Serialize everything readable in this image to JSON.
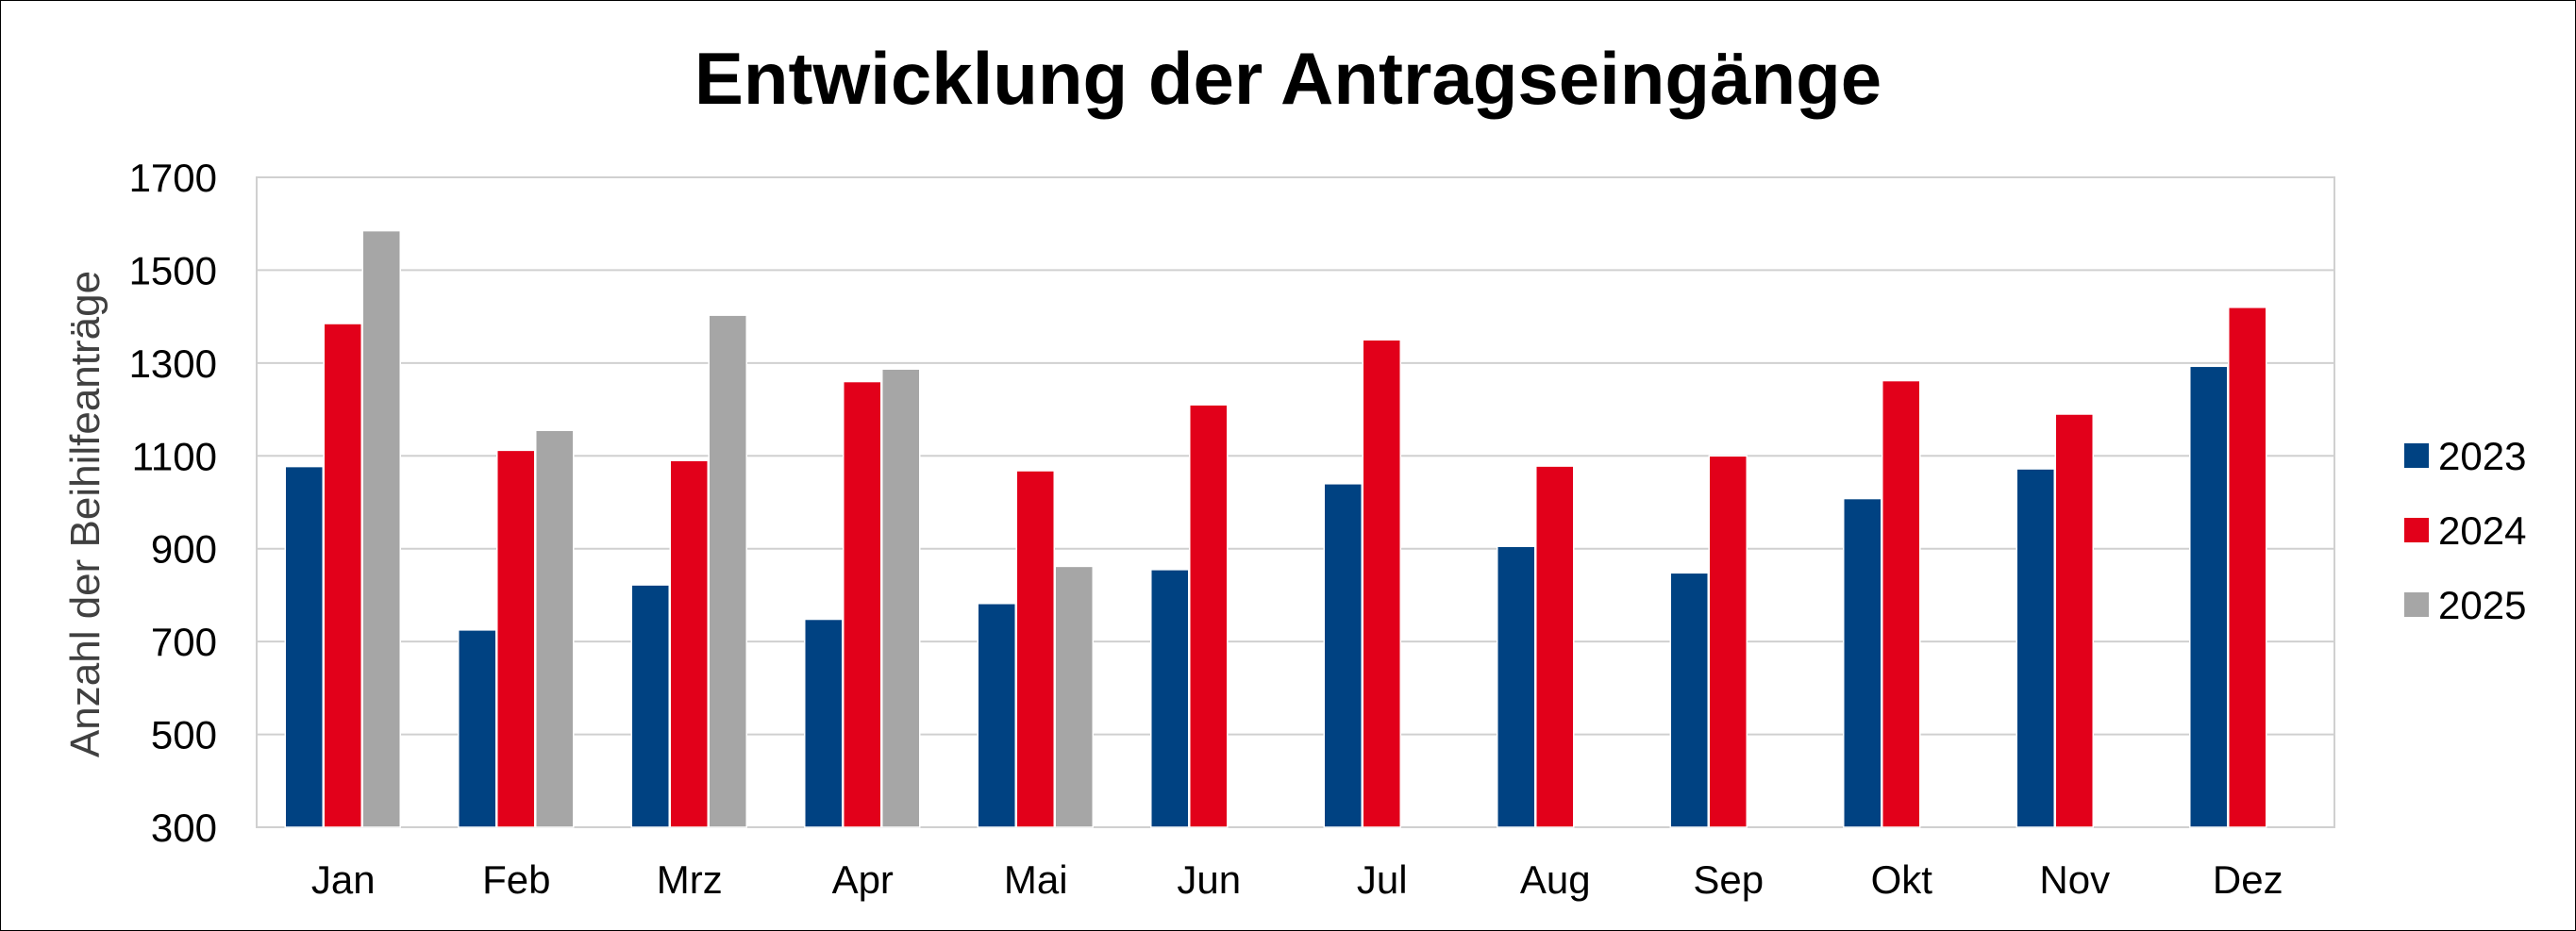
{
  "chart_data": {
    "type": "bar",
    "title": "Entwicklung der Antragseingänge",
    "ylabel": "Anzahl der Beihilfeanträge",
    "xlabel": "",
    "ylim": [
      300,
      1700
    ],
    "yticks": [
      300,
      500,
      700,
      900,
      1100,
      1300,
      1500,
      1700
    ],
    "grid": true,
    "legend_position": "right",
    "categories": [
      "Jan",
      "Feb",
      "Mrz",
      "Apr",
      "Mai",
      "Jun",
      "Jul",
      "Aug",
      "Sep",
      "Okt",
      "Nov",
      "Dez"
    ],
    "series": [
      {
        "name": "2023",
        "color": "#004282",
        "values": [
          1077,
          725,
          822,
          748,
          782,
          855,
          1040,
          905,
          848,
          1008,
          1072,
          1293
        ]
      },
      {
        "name": "2024",
        "color": "#e2001a",
        "values": [
          1385,
          1112,
          1090,
          1260,
          1068,
          1210,
          1350,
          1078,
          1100,
          1262,
          1190,
          1420
        ]
      },
      {
        "name": "2025",
        "color": "#a6a6a6",
        "values": [
          1585,
          1155,
          1403,
          1287,
          862,
          null,
          null,
          null,
          null,
          null,
          null,
          null
        ]
      }
    ]
  }
}
